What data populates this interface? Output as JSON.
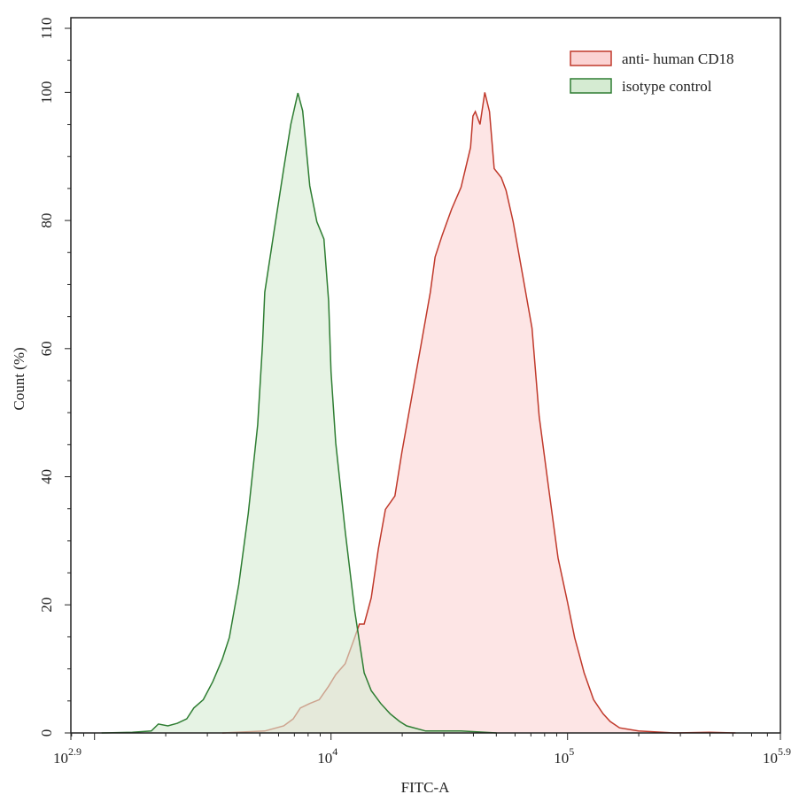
{
  "chart_data": {
    "type": "area",
    "title": "",
    "xlabel": "FITC-A",
    "ylabel": "Count  (%)",
    "xscale": "log10",
    "xlim_log10": [
      2.9,
      5.9
    ],
    "ylim": [
      0,
      110
    ],
    "x_ticks": [
      {
        "base": "10",
        "exp": "2.9",
        "log10": 2.9
      },
      {
        "base": "10",
        "exp": "4",
        "log10": 4
      },
      {
        "base": "10",
        "exp": "5",
        "log10": 5
      },
      {
        "base": "10",
        "exp": "5.9",
        "log10": 5.9
      }
    ],
    "y_ticks": [
      0,
      20,
      40,
      60,
      80,
      100,
      110
    ],
    "legend_position": "top-right",
    "series": [
      {
        "name": "anti- human CD18",
        "stroke": "#c0392b",
        "fill": "#fbd3d3",
        "x_log10": [
          3.54,
          3.72,
          3.8,
          3.84,
          3.87,
          3.91,
          3.95,
          3.99,
          4.02,
          4.06,
          4.1,
          4.12,
          4.14,
          4.17,
          4.2,
          4.23,
          4.27,
          4.3,
          4.34,
          4.38,
          4.42,
          4.44,
          4.47,
          4.51,
          4.55,
          4.59,
          4.6,
          4.61,
          4.63,
          4.65,
          4.67,
          4.69,
          4.72,
          4.74,
          4.77,
          4.81,
          4.85,
          4.88,
          4.92,
          4.96,
          5.0,
          5.03,
          5.05,
          5.07,
          5.11,
          5.15,
          5.18,
          5.22,
          5.3,
          5.45,
          5.6,
          5.71
        ],
        "y": [
          0,
          0.3,
          1.1,
          2.2,
          3.9,
          4.6,
          5.2,
          7.3,
          9.1,
          10.8,
          14.9,
          17.0,
          17.0,
          21.1,
          28.7,
          34.9,
          37.0,
          43.9,
          52.2,
          60.5,
          68.8,
          74.3,
          77.7,
          81.8,
          85.2,
          91.4,
          96.3,
          97.0,
          95.0,
          100,
          97.0,
          88.1,
          86.7,
          84.7,
          79.8,
          71.5,
          63.2,
          49.4,
          38.3,
          27.3,
          20.4,
          14.9,
          12.2,
          9.4,
          5.2,
          3.0,
          1.8,
          0.8,
          0.3,
          0,
          0.1,
          0
        ]
      },
      {
        "name": "isotype control",
        "stroke": "#2e7d32",
        "fill": "#d5ebd2",
        "x_log10": [
          3.03,
          3.16,
          3.24,
          3.27,
          3.31,
          3.35,
          3.39,
          3.42,
          3.46,
          3.5,
          3.54,
          3.57,
          3.61,
          3.65,
          3.69,
          3.71,
          3.72,
          3.76,
          3.8,
          3.83,
          3.86,
          3.88,
          3.91,
          3.94,
          3.97,
          3.99,
          4.0,
          4.02,
          4.06,
          4.1,
          4.14,
          4.17,
          4.21,
          4.25,
          4.29,
          4.32,
          4.4,
          4.55,
          4.7
        ],
        "y": [
          0,
          0.1,
          0.3,
          1.4,
          1.1,
          1.5,
          2.2,
          3.9,
          5.2,
          8.0,
          11.5,
          14.9,
          23.2,
          34.3,
          48.1,
          60.5,
          68.8,
          78.5,
          88.1,
          95.0,
          99.9,
          97.1,
          85.4,
          79.8,
          77.1,
          67.4,
          56.4,
          45.3,
          31.5,
          19.1,
          9.4,
          6.6,
          4.6,
          3.0,
          1.8,
          1.1,
          0.3,
          0.3,
          0
        ]
      }
    ]
  }
}
